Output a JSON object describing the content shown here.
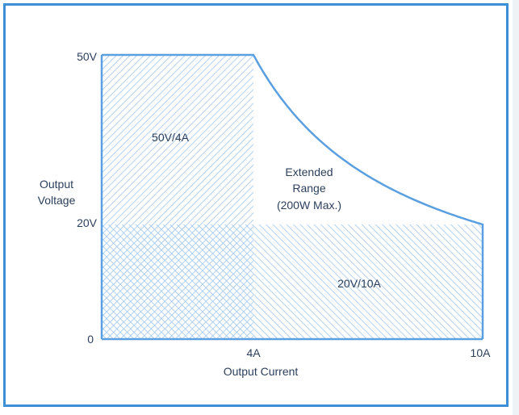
{
  "chart_data": {
    "type": "area",
    "xlabel": "Output Current",
    "ylabel": [
      "Output",
      "Voltage"
    ],
    "x_ticks": [
      "4A",
      "10A"
    ],
    "y_ticks": [
      "50V",
      "20V",
      "0"
    ],
    "x_range_A": [
      0,
      10
    ],
    "y_range_V": [
      0,
      50
    ],
    "regions": [
      {
        "label": "50V/4A",
        "max_voltage_V": 50,
        "max_current_A": 4
      },
      {
        "label": "20V/10A",
        "max_voltage_V": 20,
        "max_current_A": 10
      },
      {
        "label_lines": [
          "Extended",
          "Range",
          "(200W Max.)"
        ],
        "max_power_W": 200
      }
    ],
    "boundary": [
      [
        0,
        50
      ],
      [
        4,
        50
      ],
      [
        5,
        40
      ],
      [
        6,
        33.3
      ],
      [
        7,
        28.6
      ],
      [
        8,
        25
      ],
      [
        9,
        22.2
      ],
      [
        10,
        20
      ]
    ]
  },
  "colors": {
    "frame": "#3d8fd6",
    "curve": "#5aa0e0",
    "hatch": "#9cc6ee",
    "text": "#2b3f5c"
  }
}
